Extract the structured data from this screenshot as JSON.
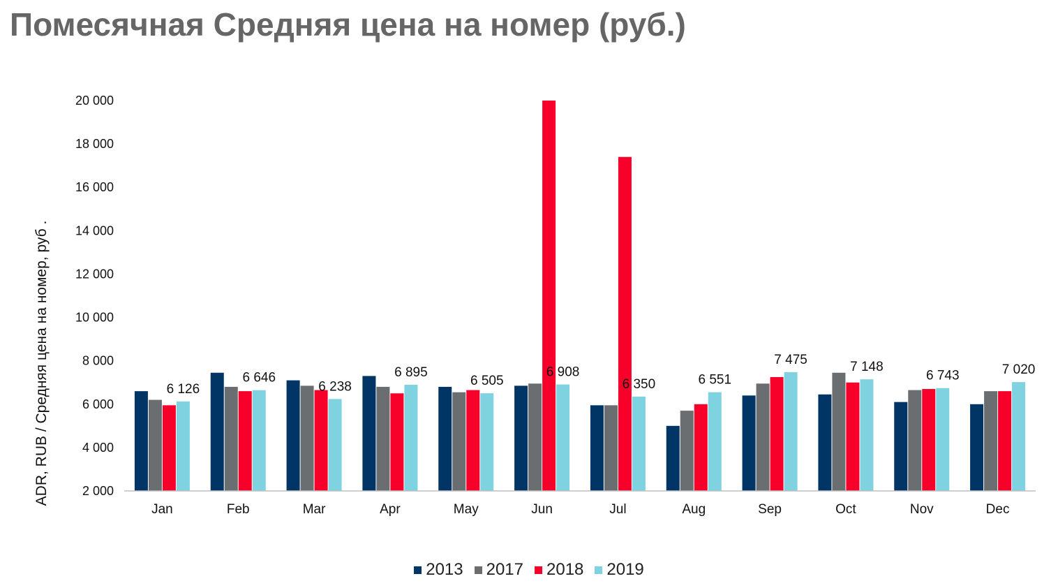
{
  "page_title": "Помесячная Средняя цена на номер (руб.)",
  "colors": {
    "2013": "#003566",
    "2017": "#6b6e70",
    "2018": "#f7002a",
    "2019": "#7fd3e0"
  },
  "chart_data": {
    "type": "bar",
    "title": "Помесячная Средняя цена на номер (руб.)",
    "xlabel": "",
    "ylabel": "ADR, RUB / Средняя цена на номер, руб .",
    "ylim": [
      2000,
      20000
    ],
    "yticks": [
      2000,
      4000,
      6000,
      8000,
      10000,
      12000,
      14000,
      16000,
      18000,
      20000
    ],
    "ytick_labels": [
      "2 000",
      "4 000",
      "6 000",
      "8 000",
      "10 000",
      "12 000",
      "14 000",
      "16 000",
      "18 000",
      "20 000"
    ],
    "grid": false,
    "legend_position": "bottom",
    "categories": [
      "Jan",
      "Feb",
      "Mar",
      "Apr",
      "May",
      "Jun",
      "Jul",
      "Aug",
      "Sep",
      "Oct",
      "Nov",
      "Dec"
    ],
    "series": [
      {
        "name": "2013",
        "color": "#003566",
        "values": [
          6600,
          7450,
          7100,
          7300,
          6800,
          6850,
          5950,
          5000,
          6400,
          6450,
          6100,
          6000
        ]
      },
      {
        "name": "2017",
        "color": "#6b6e70",
        "values": [
          6200,
          6800,
          6850,
          6800,
          6550,
          6950,
          5950,
          5700,
          6950,
          7450,
          6650,
          6600
        ]
      },
      {
        "name": "2018",
        "color": "#f7002a",
        "values": [
          5950,
          6600,
          6650,
          6500,
          6650,
          20000,
          17400,
          6000,
          7250,
          7000,
          6700,
          6600
        ]
      },
      {
        "name": "2019",
        "color": "#7fd3e0",
        "values": [
          6126,
          6646,
          6238,
          6895,
          6505,
          6908,
          6350,
          6551,
          7475,
          7148,
          6743,
          7020
        ],
        "labels": [
          "6 126",
          "6 646",
          "6 238",
          "6 895",
          "6 505",
          "6 908",
          "6 350",
          "6 551",
          "7 475",
          "7 148",
          "6 743",
          "7 020"
        ]
      }
    ]
  }
}
